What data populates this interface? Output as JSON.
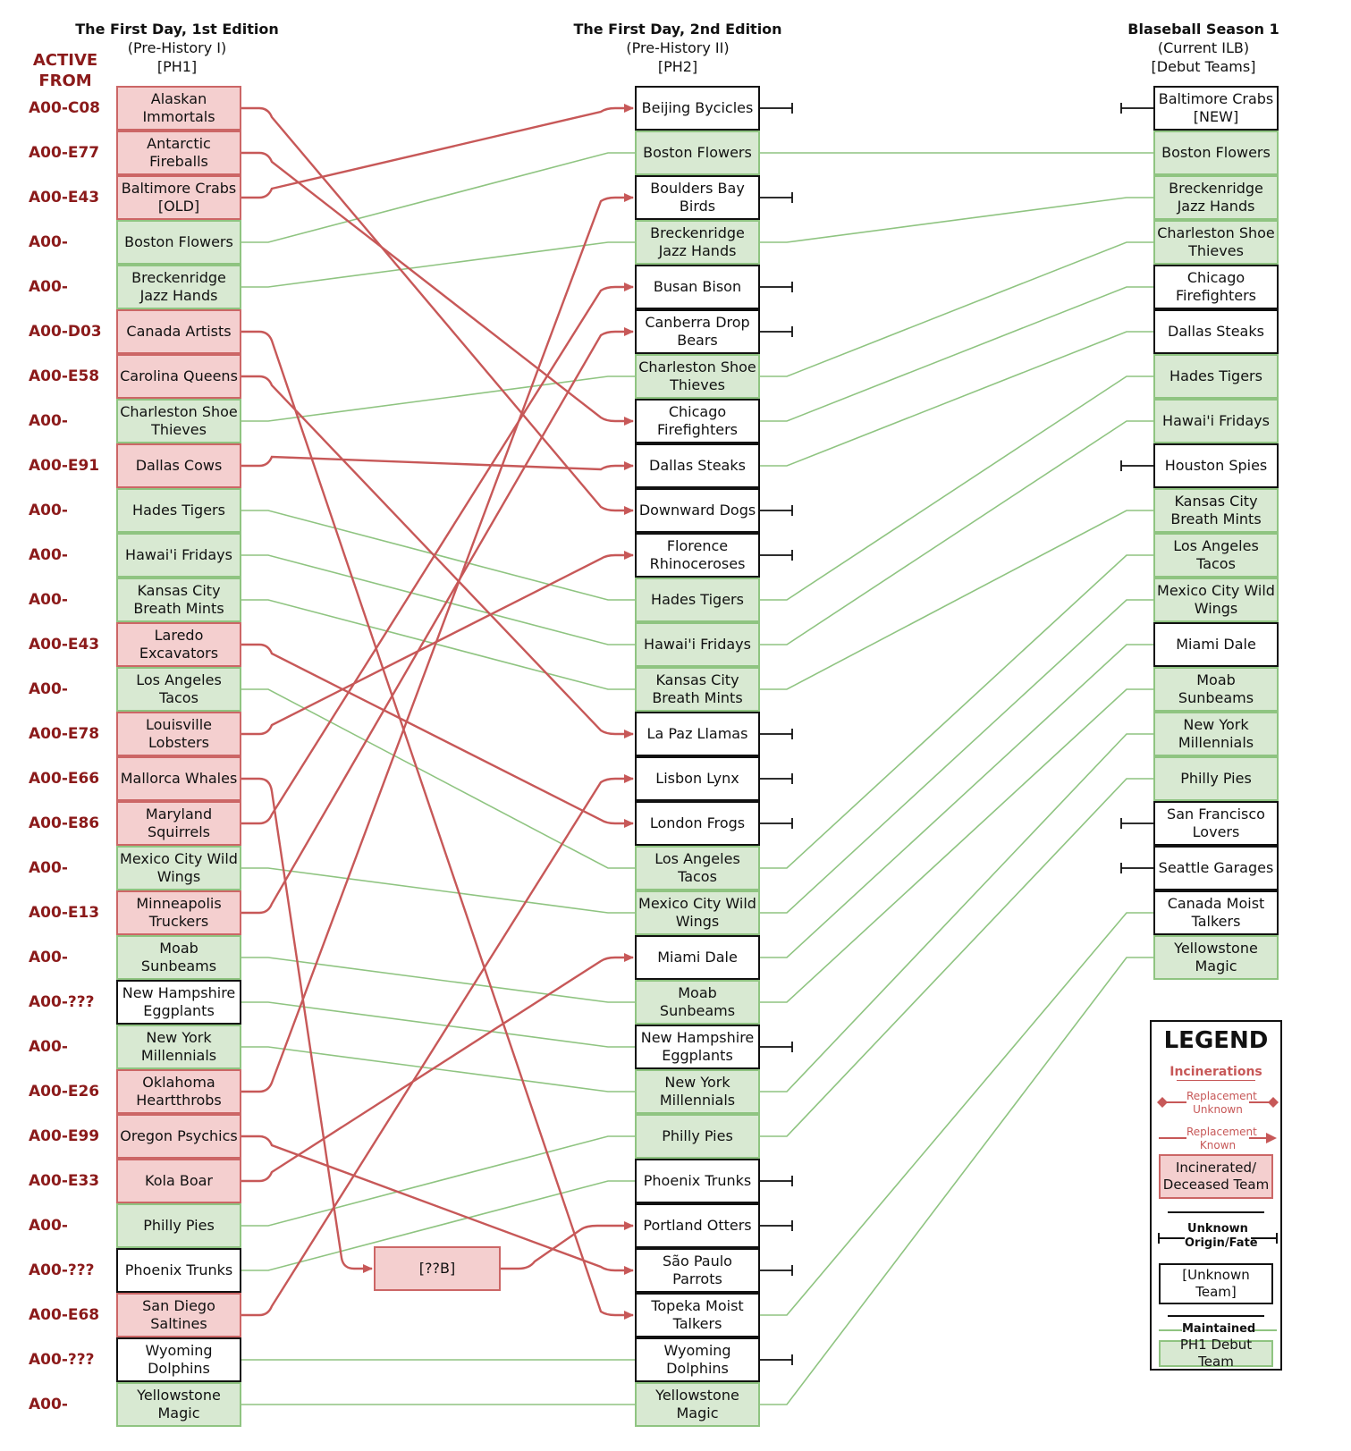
{
  "headers": {
    "ph1": {
      "title": "The First Day, 1st Edition",
      "sub": "(Pre-History I)",
      "tag": "[PH1]"
    },
    "ph2": {
      "title": "The First Day, 2nd Edition",
      "sub": "(Pre-History II)",
      "tag": "[PH2]"
    },
    "s1": {
      "title": "Blaseball Season 1",
      "sub": "(Current ILB)",
      "tag": "[Debut Teams]"
    },
    "active_from": "ACTIVE FROM"
  },
  "colors": {
    "green_fill": "#d8e9d2",
    "green_line": "#8fc481",
    "red_fill": "#f4cfcf",
    "red_line": "#c75858",
    "dark_red_text": "#8b1a1a",
    "black": "#111111"
  },
  "ph1": [
    {
      "name": "Alaskan Immortals",
      "type": "r",
      "active": "A00-C08"
    },
    {
      "name": "Antarctic Fireballs",
      "type": "r",
      "active": "A00-E77"
    },
    {
      "name": "Baltimore Crabs [OLD]",
      "type": "r",
      "active": "A00-E43"
    },
    {
      "name": "Boston Flowers",
      "type": "g",
      "active": "A00-"
    },
    {
      "name": "Breckenridge Jazz Hands",
      "type": "g",
      "active": "A00-"
    },
    {
      "name": "Canada Artists",
      "type": "r",
      "active": "A00-D03"
    },
    {
      "name": "Carolina Queens",
      "type": "r",
      "active": "A00-E58"
    },
    {
      "name": "Charleston Shoe Thieves",
      "type": "g",
      "active": "A00-"
    },
    {
      "name": "Dallas Cows",
      "type": "r",
      "active": "A00-E91"
    },
    {
      "name": "Hades Tigers",
      "type": "g",
      "active": "A00-"
    },
    {
      "name": "Hawai'i Fridays",
      "type": "g",
      "active": "A00-"
    },
    {
      "name": "Kansas City Breath Mints",
      "type": "g",
      "active": "A00-"
    },
    {
      "name": "Laredo Excavators",
      "type": "r",
      "active": "A00-E43"
    },
    {
      "name": "Los Angeles Tacos",
      "type": "g",
      "active": "A00-"
    },
    {
      "name": "Louisville Lobsters",
      "type": "r",
      "active": "A00-E78"
    },
    {
      "name": "Mallorca Whales",
      "type": "r",
      "active": "A00-E66"
    },
    {
      "name": "Maryland Squirrels",
      "type": "r",
      "active": "A00-E86"
    },
    {
      "name": "Mexico City Wild Wings",
      "type": "g",
      "active": "A00-"
    },
    {
      "name": "Minneapolis Truckers",
      "type": "r",
      "active": "A00-E13"
    },
    {
      "name": "Moab Sunbeams",
      "type": "g",
      "active": "A00-"
    },
    {
      "name": "New Hampshire Eggplants",
      "type": "u",
      "active": "A00-???"
    },
    {
      "name": "New York Millennials",
      "type": "g",
      "active": "A00-"
    },
    {
      "name": "Oklahoma Heartthrobs",
      "type": "r",
      "active": "A00-E26"
    },
    {
      "name": "Oregon Psychics",
      "type": "r",
      "active": "A00-E99"
    },
    {
      "name": "Kola Boar",
      "type": "r",
      "active": "A00-E33"
    },
    {
      "name": "Philly Pies",
      "type": "g",
      "active": "A00-"
    },
    {
      "name": "Phoenix Trunks",
      "type": "u",
      "active": "A00-???"
    },
    {
      "name": "San Diego Saltines",
      "type": "r",
      "active": "A00-E68"
    },
    {
      "name": "Wyoming Dolphins",
      "type": "u",
      "active": "A00-???"
    },
    {
      "name": "Yellowstone Magic",
      "type": "g",
      "active": "A00-"
    }
  ],
  "ph2": [
    {
      "name": "Beijing Bycicles",
      "type": "u",
      "fate": true
    },
    {
      "name": "Boston Flowers",
      "type": "g",
      "fate": false
    },
    {
      "name": "Boulders Bay Birds",
      "type": "u",
      "fate": true
    },
    {
      "name": "Breckenridge Jazz Hands",
      "type": "g",
      "fate": false
    },
    {
      "name": "Busan Bison",
      "type": "u",
      "fate": true
    },
    {
      "name": "Canberra Drop Bears",
      "type": "u",
      "fate": true
    },
    {
      "name": "Charleston Shoe Thieves",
      "type": "g",
      "fate": false
    },
    {
      "name": "Chicago Firefighters",
      "type": "u",
      "fate": false
    },
    {
      "name": "Dallas Steaks",
      "type": "u",
      "fate": false
    },
    {
      "name": "Downward Dogs",
      "type": "u",
      "fate": true
    },
    {
      "name": "Florence Rhinoceroses",
      "type": "u",
      "fate": true
    },
    {
      "name": "Hades Tigers",
      "type": "g",
      "fate": false
    },
    {
      "name": "Hawai'i Fridays",
      "type": "g",
      "fate": false
    },
    {
      "name": "Kansas City Breath Mints",
      "type": "g",
      "fate": false
    },
    {
      "name": "La Paz Llamas",
      "type": "u",
      "fate": true
    },
    {
      "name": "Lisbon Lynx",
      "type": "u",
      "fate": true
    },
    {
      "name": "London Frogs",
      "type": "u",
      "fate": true
    },
    {
      "name": "Los Angeles Tacos",
      "type": "g",
      "fate": false
    },
    {
      "name": "Mexico City Wild Wings",
      "type": "g",
      "fate": false
    },
    {
      "name": "Miami Dale",
      "type": "u",
      "fate": false
    },
    {
      "name": "Moab Sunbeams",
      "type": "g",
      "fate": false
    },
    {
      "name": "New Hampshire Eggplants",
      "type": "u",
      "fate": true
    },
    {
      "name": "New York Millennials",
      "type": "g",
      "fate": false
    },
    {
      "name": "Philly Pies",
      "type": "g",
      "fate": false
    },
    {
      "name": "Phoenix Trunks",
      "type": "u",
      "fate": true
    },
    {
      "name": "Portland Otters",
      "type": "u",
      "fate": true
    },
    {
      "name": "São Paulo Parrots",
      "type": "u",
      "fate": true
    },
    {
      "name": "Topeka Moist Talkers",
      "type": "u",
      "fate": false
    },
    {
      "name": "Wyoming Dolphins",
      "type": "u",
      "fate": true
    },
    {
      "name": "Yellowstone Magic",
      "type": "g",
      "fate": false
    }
  ],
  "s1": [
    {
      "name": "Baltimore Crabs [NEW]",
      "type": "u",
      "origin": true
    },
    {
      "name": "Boston Flowers",
      "type": "g",
      "origin": false
    },
    {
      "name": "Breckenridge Jazz Hands",
      "type": "g",
      "origin": false
    },
    {
      "name": "Charleston Shoe Thieves",
      "type": "g",
      "origin": false
    },
    {
      "name": "Chicago Firefighters",
      "type": "u",
      "origin": false
    },
    {
      "name": "Dallas Steaks",
      "type": "u",
      "origin": false
    },
    {
      "name": "Hades Tigers",
      "type": "g",
      "origin": false
    },
    {
      "name": "Hawai'i Fridays",
      "type": "g",
      "origin": false
    },
    {
      "name": "Houston Spies",
      "type": "u",
      "origin": true
    },
    {
      "name": "Kansas City Breath Mints",
      "type": "g",
      "origin": false
    },
    {
      "name": "Los Angeles Tacos",
      "type": "g",
      "origin": false
    },
    {
      "name": "Mexico City Wild Wings",
      "type": "g",
      "origin": false
    },
    {
      "name": "Miami Dale",
      "type": "u",
      "origin": false
    },
    {
      "name": "Moab Sunbeams",
      "type": "g",
      "origin": false
    },
    {
      "name": "New York Millennials",
      "type": "g",
      "origin": false
    },
    {
      "name": "Philly Pies",
      "type": "g",
      "origin": false
    },
    {
      "name": "San Francisco Lovers",
      "type": "u",
      "origin": true
    },
    {
      "name": "Seattle Garages",
      "type": "u",
      "origin": true
    },
    {
      "name": "Canada Moist Talkers",
      "type": "u",
      "origin": false
    },
    {
      "name": "Yellowstone Magic",
      "type": "g",
      "origin": false
    }
  ],
  "mid_box": {
    "name": "[??B]"
  },
  "red_links": [
    [
      0,
      9
    ],
    [
      1,
      7
    ],
    [
      2,
      0
    ],
    [
      5,
      27
    ],
    [
      6,
      14
    ],
    [
      8,
      8
    ],
    [
      12,
      16
    ],
    [
      14,
      10
    ],
    [
      16,
      4
    ],
    [
      18,
      5
    ],
    [
      22,
      2
    ],
    [
      23,
      26
    ],
    [
      24,
      19
    ],
    [
      27,
      15
    ]
  ],
  "mid_links": {
    "from": 15,
    "to": 25
  },
  "green_links_12": [
    [
      3,
      1
    ],
    [
      4,
      3
    ],
    [
      7,
      6
    ],
    [
      9,
      11
    ],
    [
      10,
      12
    ],
    [
      11,
      13
    ],
    [
      13,
      17
    ],
    [
      17,
      18
    ],
    [
      19,
      20
    ],
    [
      20,
      21
    ],
    [
      21,
      22
    ],
    [
      25,
      23
    ],
    [
      26,
      24
    ],
    [
      28,
      28
    ],
    [
      29,
      29
    ]
  ],
  "green_links_23": [
    [
      1,
      1
    ],
    [
      3,
      2
    ],
    [
      6,
      3
    ],
    [
      7,
      4
    ],
    [
      8,
      5
    ],
    [
      11,
      6
    ],
    [
      12,
      7
    ],
    [
      13,
      9
    ],
    [
      17,
      10
    ],
    [
      18,
      11
    ],
    [
      19,
      12
    ],
    [
      20,
      13
    ],
    [
      22,
      14
    ],
    [
      23,
      15
    ],
    [
      27,
      18
    ],
    [
      29,
      19
    ]
  ],
  "legend": {
    "title": "LEGEND",
    "incinerations": "Incinerations",
    "replacement_unknown": "Replacement Unknown",
    "replacement_known": "Replacement Known",
    "incinerated_box": "Incinerated/ Deceased Team",
    "unknown_origin": "Unknown Origin/Fate",
    "unknown_box": "[Unknown Team]",
    "maintained": "Maintained",
    "debut_box": "PH1 Debut Team"
  }
}
